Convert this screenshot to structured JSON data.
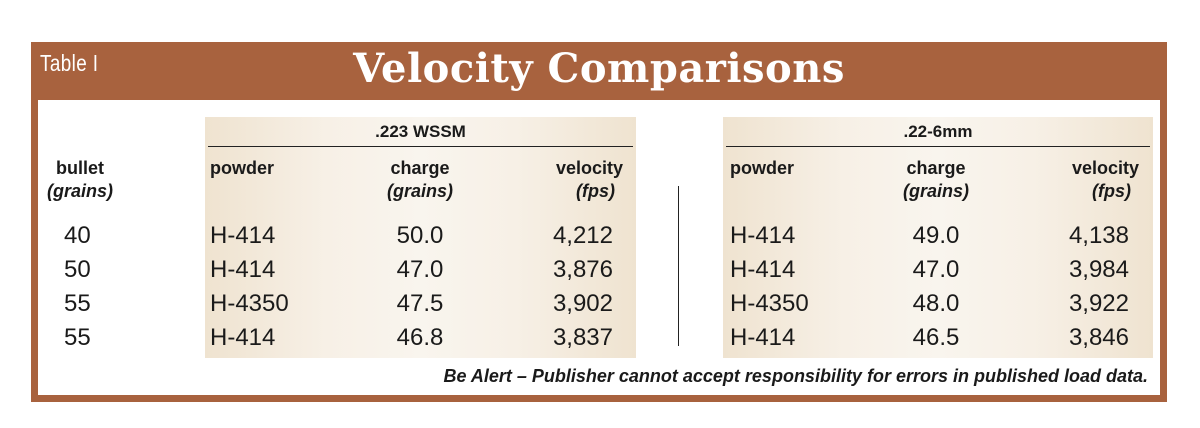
{
  "table_label": "Table I",
  "title": "Velocity Comparisons",
  "groups": [
    ".223 WSSM",
    ".22-6mm"
  ],
  "columns": {
    "bullet": {
      "label": "bullet",
      "unit": "(grains)"
    },
    "powder": {
      "label": "powder"
    },
    "charge": {
      "label": "charge",
      "unit": "(grains)"
    },
    "velocity": {
      "label": "velocity",
      "unit": "(fps)"
    }
  },
  "rows": [
    {
      "bullet": "40",
      "wssm": {
        "powder": "H-414",
        "charge": "50.0",
        "velocity": "4,212"
      },
      "mm6": {
        "powder": "H-414",
        "charge": "49.0",
        "velocity": "4,138"
      }
    },
    {
      "bullet": "50",
      "wssm": {
        "powder": "H-414",
        "charge": "47.0",
        "velocity": "3,876"
      },
      "mm6": {
        "powder": "H-414",
        "charge": "47.0",
        "velocity": "3,984"
      }
    },
    {
      "bullet": "55",
      "wssm": {
        "powder": "H-4350",
        "charge": "47.5",
        "velocity": "3,902"
      },
      "mm6": {
        "powder": "H-4350",
        "charge": "48.0",
        "velocity": "3,922"
      }
    },
    {
      "bullet": "55",
      "wssm": {
        "powder": "H-414",
        "charge": "46.8",
        "velocity": "3,837"
      },
      "mm6": {
        "powder": "H-414",
        "charge": "46.5",
        "velocity": "3,846"
      }
    }
  ],
  "footnote": "Be Alert – Publisher cannot accept responsibility for errors in published load data.",
  "colors": {
    "frame": "#a8623e",
    "shade": "#f3e9da",
    "text": "#1a1a1a"
  }
}
